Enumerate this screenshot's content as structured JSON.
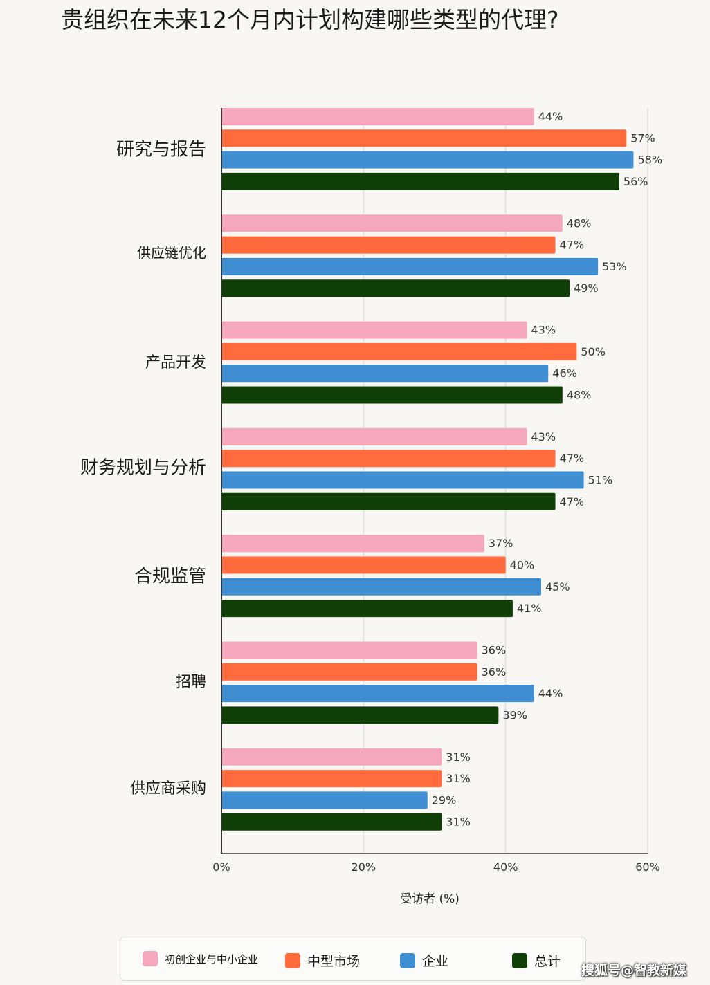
{
  "title": "贵组织在未来12个月内计划构建哪些类型的代理?",
  "watermark": "搜狐号@智教新媒",
  "colors": {
    "startup_smb": "#f4a7bd",
    "midmarket": "#ff6b3d",
    "enterprise": "#3f8fd2",
    "total": "#0f3f06",
    "grid": "#dddddd",
    "axis": "#333333"
  },
  "legend": [
    {
      "label": "初创企业与中小企业",
      "color": "#f4a7bd"
    },
    {
      "label": "中型市场",
      "color": "#ff6b3d"
    },
    {
      "label": "企业",
      "color": "#3f8fd2"
    },
    {
      "label": "总计",
      "color": "#0f3f06"
    }
  ],
  "chart_data": {
    "type": "bar",
    "orientation": "horizontal",
    "categories": [
      "研究与报告",
      "供应链优化",
      "产品开发",
      "财务规划与分析",
      "合规监管",
      "招聘",
      "供应商采购"
    ],
    "series": [
      {
        "name": "初创企业与中小企业",
        "values": [
          44,
          48,
          43,
          43,
          37,
          36,
          31
        ]
      },
      {
        "name": "中型市场",
        "values": [
          57,
          47,
          50,
          47,
          40,
          36,
          31
        ]
      },
      {
        "name": "企业",
        "values": [
          58,
          53,
          46,
          51,
          45,
          44,
          29
        ]
      },
      {
        "name": "总计",
        "values": [
          56,
          49,
          48,
          47,
          41,
          39,
          31
        ]
      }
    ],
    "xlim": [
      0,
      60
    ],
    "xticks": [
      "0%",
      "20%",
      "40%",
      "60%"
    ],
    "xlabel": "受访者 (%)",
    "value_suffix": "%",
    "grid": true,
    "legend_position": "bottom"
  }
}
